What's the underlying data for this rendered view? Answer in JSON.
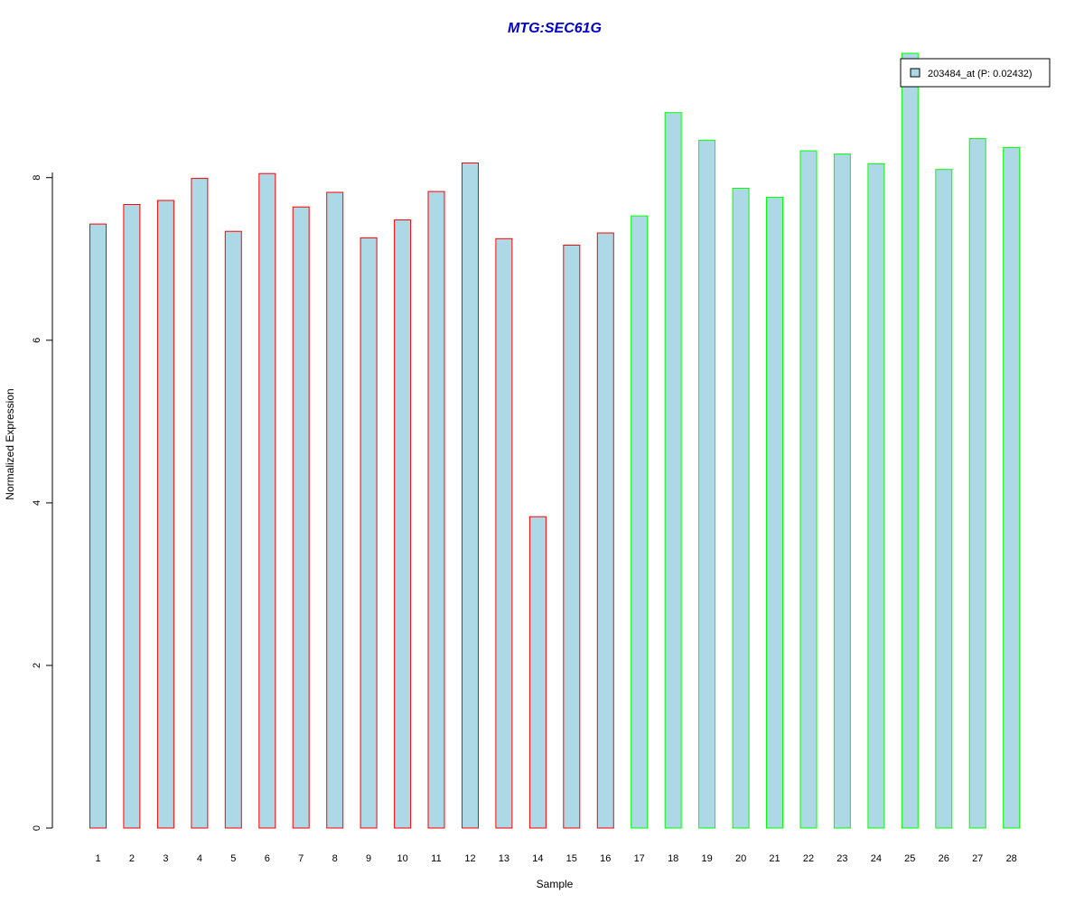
{
  "chart_data": {
    "type": "bar",
    "title": "MTG:SEC61G",
    "xlabel": "Sample",
    "ylabel": "Normalized Expression",
    "categories": [
      "1",
      "2",
      "3",
      "4",
      "5",
      "6",
      "7",
      "8",
      "9",
      "10",
      "11",
      "12",
      "13",
      "14",
      "15",
      "16",
      "17",
      "18",
      "19",
      "20",
      "21",
      "22",
      "23",
      "24",
      "25",
      "26",
      "27",
      "28"
    ],
    "values": [
      7.43,
      7.67,
      7.72,
      7.99,
      7.34,
      8.05,
      7.64,
      7.82,
      7.26,
      7.48,
      7.83,
      8.18,
      7.25,
      3.83,
      7.17,
      7.32,
      7.53,
      8.8,
      8.46,
      7.87,
      7.76,
      8.33,
      8.29,
      8.17,
      9.53,
      8.1,
      8.48,
      8.37
    ],
    "group": [
      "red",
      "red",
      "red",
      "red",
      "red",
      "red",
      "red",
      "red",
      "red",
      "red",
      "red",
      "red",
      "red",
      "red",
      "red",
      "red",
      "green",
      "green",
      "green",
      "green",
      "green",
      "green",
      "green",
      "green",
      "green",
      "green",
      "green",
      "green"
    ],
    "yticks": [
      "0",
      "2",
      "4",
      "6",
      "8"
    ],
    "ylim": [
      0,
      9.53
    ],
    "legend": {
      "label": "203484_at (P: 0.02432)",
      "position": "top-right"
    },
    "colors": {
      "fill": "#add8e6",
      "group_red": "#ff0000",
      "group_green": "#00ff00",
      "title": "#0000cc"
    },
    "grid": false
  }
}
